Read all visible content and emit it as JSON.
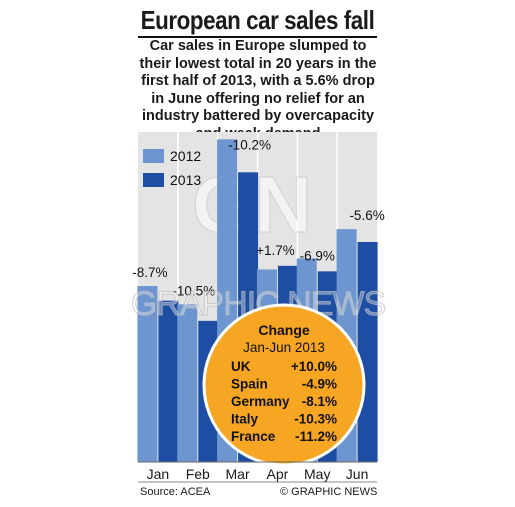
{
  "header": {
    "title": "European car sales fall",
    "subtitle_lines": [
      "Car sales in Europe slumped to",
      "their lowest total in 20 years in the",
      "first half of 2013, with a 5.6% drop",
      "in June offering no relief for an",
      "industry battered by overcapacity",
      "and weak demand"
    ]
  },
  "chart_data": {
    "type": "bar",
    "categories": [
      "Jan",
      "Feb",
      "Mar",
      "Apr",
      "May",
      "Jun"
    ],
    "series": [
      {
        "name": "2012",
        "color": "#6d95cf",
        "values": [
          0.96,
          0.86,
          1.76,
          1.05,
          1.11,
          1.27
        ]
      },
      {
        "name": "2013",
        "color": "#1d4ea3",
        "values": [
          0.88,
          0.77,
          1.58,
          1.07,
          1.04,
          1.2
        ]
      }
    ],
    "bar_labels": [
      "-8.7%",
      "-10.5%",
      "-10.2%",
      "+1.7%",
      "-6.9%",
      "-5.6%"
    ],
    "ylim": [
      0,
      1.8
    ],
    "grid": true,
    "legend": "top-left",
    "colors": {
      "plot_bg": "#e4e4e4",
      "grid": "#ffffff",
      "badge": "#f6a623"
    }
  },
  "change_badge": {
    "title": "Change",
    "period": "Jan-Jun 2013",
    "rows": [
      {
        "country": "UK",
        "value": "+10.0%"
      },
      {
        "country": "Spain",
        "value": "-4.9%"
      },
      {
        "country": "Germany",
        "value": "-8.1%"
      },
      {
        "country": "Italy",
        "value": "-10.3%"
      },
      {
        "country": "France",
        "value": "-11.2%"
      }
    ]
  },
  "footer": {
    "source": "Source: ACEA",
    "credit": "© GRAPHIC NEWS"
  },
  "watermark": {
    "monogram": "GN",
    "text": "GRAPHIC NEWS"
  }
}
